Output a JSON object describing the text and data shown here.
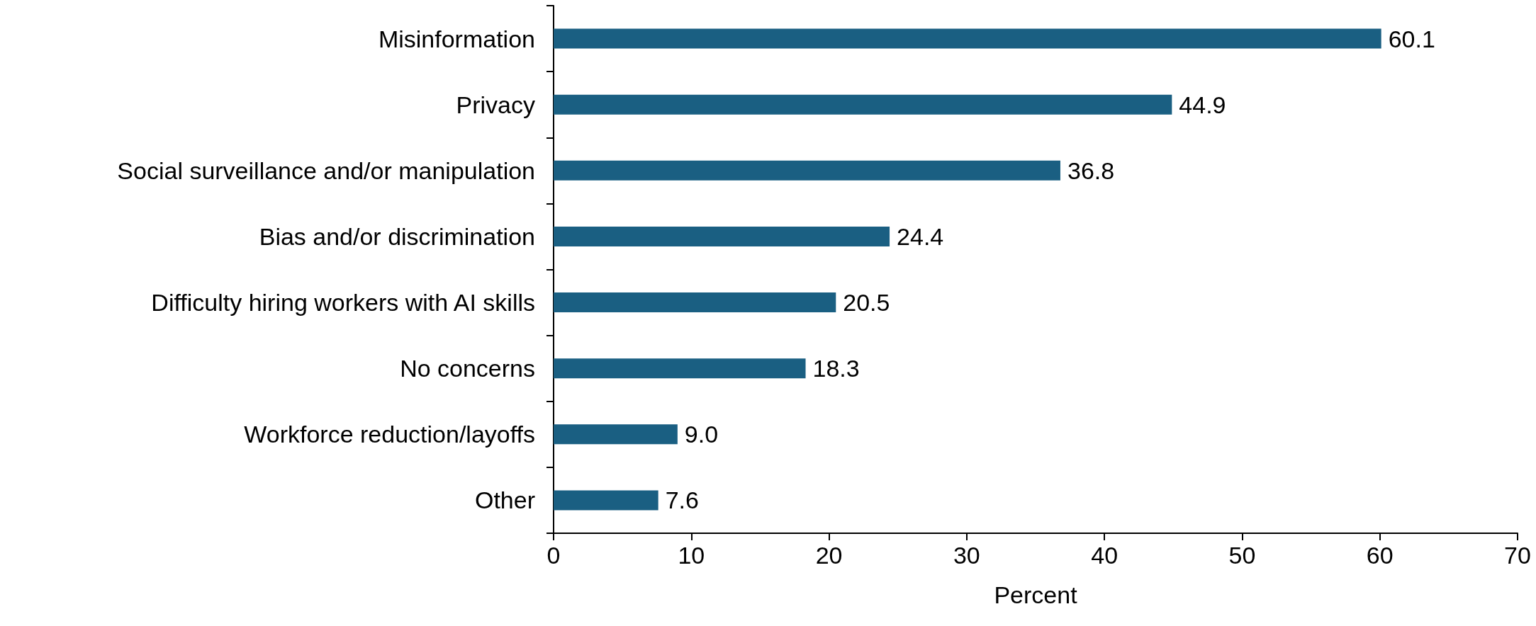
{
  "chart_data": {
    "type": "bar",
    "orientation": "horizontal",
    "xlabel": "Percent",
    "categories": [
      "Misinformation",
      "Privacy",
      "Social surveillance and/or manipulation",
      "Bias and/or discrimination",
      "Difficulty hiring workers with AI skills",
      "No concerns",
      "Workforce reduction/layoffs",
      "Other"
    ],
    "values": [
      60.1,
      44.9,
      36.8,
      24.4,
      20.5,
      18.3,
      9.0,
      7.6
    ],
    "color": "#1a5f82",
    "xlim": [
      0,
      70
    ],
    "xticks": [
      0,
      10,
      20,
      30,
      40,
      50,
      60,
      70
    ],
    "value_labels": [
      "60.1",
      "44.9",
      "36.8",
      "24.4",
      "20.5",
      "18.3",
      "9.0",
      "7.6"
    ],
    "grid": false
  }
}
